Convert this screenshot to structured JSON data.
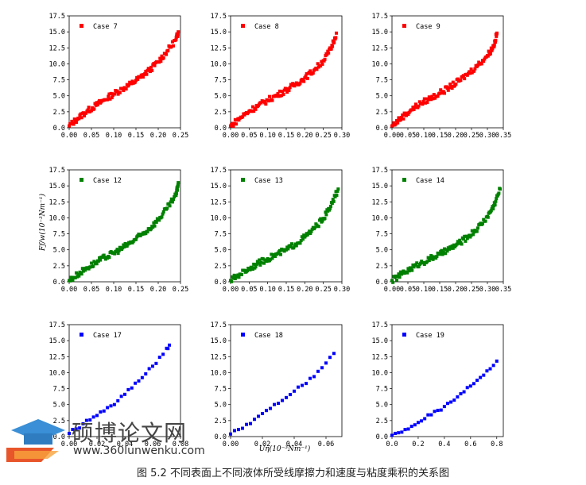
{
  "caption": "图 5.2 不同表面上不同液体所受线摩擦力和速度与粘度乘积的关系图",
  "watermark": {
    "name": "硕博论文网",
    "url": "www.360lunwenku.com"
  },
  "shared_ylabel": "Fƒ/w(10⁻³Nm⁻¹)",
  "shared_xlabel": "Uη(10⁻³Nm⁻¹)",
  "colors": {
    "red": "#ff0000",
    "green": "#008000",
    "blue": "#0000ff"
  },
  "chart_data": [
    {
      "type": "scatter",
      "legend": "Case 7",
      "color": "#ff0000",
      "xlim": [
        0,
        0.25
      ],
      "ylim": [
        0,
        17.5
      ],
      "xticks": [
        "0.00",
        "0.05",
        "0.10",
        "0.15",
        "0.20",
        "0.25"
      ],
      "yticks": [
        "0.0",
        "2.5",
        "5.0",
        "7.5",
        "10.0",
        "12.5",
        "15.0",
        "17.5"
      ],
      "x": [
        0.0,
        0.02,
        0.04,
        0.06,
        0.08,
        0.1,
        0.12,
        0.14,
        0.16,
        0.18,
        0.2,
        0.22,
        0.24,
        0.245
      ],
      "y": [
        0.3,
        1.5,
        2.6,
        3.5,
        4.4,
        5.3,
        6.1,
        6.9,
        7.9,
        9.0,
        10.3,
        12.0,
        13.8,
        15.0
      ]
    },
    {
      "type": "scatter",
      "legend": "Case 8",
      "color": "#ff0000",
      "xlim": [
        0,
        0.3
      ],
      "ylim": [
        0,
        17.5
      ],
      "xticks": [
        "0.00",
        "0.05",
        "0.10",
        "0.15",
        "0.20",
        "0.25",
        "0.30"
      ],
      "yticks": [
        "0.0",
        "2.5",
        "5.0",
        "7.5",
        "10.0",
        "12.5",
        "15.0",
        "17.5"
      ],
      "x": [
        0.0,
        0.025,
        0.05,
        0.075,
        0.1,
        0.125,
        0.15,
        0.175,
        0.2,
        0.225,
        0.25,
        0.27,
        0.285
      ],
      "y": [
        0.3,
        1.5,
        2.6,
        3.5,
        4.3,
        5.1,
        5.9,
        6.8,
        7.8,
        9.0,
        10.5,
        12.3,
        14.8
      ]
    },
    {
      "type": "scatter",
      "legend": "Case 9",
      "color": "#ff0000",
      "xlim": [
        0,
        0.35
      ],
      "ylim": [
        0,
        17.5
      ],
      "xticks": [
        "0.00",
        "0.05",
        "0.10",
        "0.15",
        "0.20",
        "0.25",
        "0.30",
        "0.35"
      ],
      "yticks": [
        "0.0",
        "2.5",
        "5.0",
        "7.5",
        "10.0",
        "12.5",
        "15.0",
        "17.5"
      ],
      "x": [
        0.0,
        0.03,
        0.06,
        0.09,
        0.12,
        0.15,
        0.18,
        0.21,
        0.24,
        0.27,
        0.3,
        0.32,
        0.33
      ],
      "y": [
        0.3,
        1.6,
        2.8,
        3.8,
        4.6,
        5.4,
        6.3,
        7.3,
        8.5,
        9.8,
        11.3,
        12.8,
        14.8
      ]
    },
    {
      "type": "scatter",
      "legend": "Case 12",
      "color": "#008000",
      "xlim": [
        0,
        0.25
      ],
      "ylim": [
        0,
        17.5
      ],
      "xticks": [
        "0.00",
        "0.05",
        "0.10",
        "0.15",
        "0.20",
        "0.25"
      ],
      "yticks": [
        "0.0",
        "2.5",
        "5.0",
        "7.5",
        "10.0",
        "12.5",
        "15.0",
        "17.5"
      ],
      "x": [
        0.0,
        0.02,
        0.04,
        0.06,
        0.08,
        0.1,
        0.12,
        0.14,
        0.16,
        0.18,
        0.2,
        0.22,
        0.24,
        0.245
      ],
      "y": [
        0.2,
        1.2,
        2.2,
        3.0,
        3.8,
        4.5,
        5.3,
        6.2,
        7.2,
        8.3,
        9.7,
        11.5,
        13.5,
        15.5
      ]
    },
    {
      "type": "scatter",
      "legend": "Case 13",
      "color": "#008000",
      "xlim": [
        0,
        0.3
      ],
      "ylim": [
        0,
        17.5
      ],
      "xticks": [
        "0.00",
        "0.05",
        "0.10",
        "0.15",
        "0.20",
        "0.25",
        "0.30"
      ],
      "yticks": [
        "0.0",
        "2.5",
        "5.0",
        "7.5",
        "10.0",
        "12.5",
        "15.0",
        "17.5"
      ],
      "x": [
        0.0,
        0.025,
        0.05,
        0.075,
        0.1,
        0.125,
        0.15,
        0.175,
        0.2,
        0.225,
        0.25,
        0.27,
        0.29
      ],
      "y": [
        0.2,
        1.2,
        2.1,
        2.9,
        3.6,
        4.3,
        5.0,
        5.9,
        7.0,
        8.3,
        9.9,
        11.8,
        14.5
      ]
    },
    {
      "type": "scatter",
      "legend": "Case 14",
      "color": "#008000",
      "xlim": [
        0,
        0.35
      ],
      "ylim": [
        0,
        17.5
      ],
      "xticks": [
        "0.00",
        "0.05",
        "0.10",
        "0.15",
        "0.20",
        "0.25",
        "0.30",
        "0.35"
      ],
      "yticks": [
        "0.0",
        "2.5",
        "5.0",
        "7.5",
        "10.0",
        "12.5",
        "15.0",
        "17.5"
      ],
      "x": [
        0.0,
        0.03,
        0.06,
        0.09,
        0.12,
        0.15,
        0.18,
        0.21,
        0.24,
        0.27,
        0.3,
        0.32,
        0.34
      ],
      "y": [
        0.2,
        1.2,
        2.1,
        2.9,
        3.6,
        4.3,
        5.1,
        6.0,
        7.1,
        8.4,
        10.2,
        11.9,
        14.5
      ]
    },
    {
      "type": "scatter",
      "legend": "Case 17",
      "color": "#0000ff",
      "xlim": [
        0,
        0.08
      ],
      "ylim": [
        0,
        17.5
      ],
      "xticks": [
        "0.00",
        "0.02",
        "0.04",
        "0.06",
        "0.08"
      ],
      "yticks": [
        "0.0",
        "2.5",
        "5.0",
        "7.5",
        "10.0",
        "12.5",
        "15.0",
        "17.5"
      ],
      "x": [
        0.0,
        0.005,
        0.01,
        0.015,
        0.02,
        0.025,
        0.03,
        0.035,
        0.04,
        0.045,
        0.05,
        0.055,
        0.06,
        0.065,
        0.07,
        0.072
      ],
      "y": [
        0.5,
        1.2,
        2.0,
        2.6,
        3.3,
        4.0,
        4.8,
        5.6,
        6.6,
        7.6,
        8.7,
        9.8,
        11.0,
        12.4,
        13.8,
        14.3
      ]
    },
    {
      "type": "scatter",
      "legend": "Case 18",
      "color": "#0000ff",
      "xlim": [
        0,
        0.07
      ],
      "ylim": [
        0,
        17.5
      ],
      "xticks": [
        "0.00",
        "0.02",
        "0.04",
        "0.06"
      ],
      "yticks": [
        "0.0",
        "2.5",
        "5.0",
        "7.5",
        "10.0",
        "12.5",
        "15.0",
        "17.5"
      ],
      "x": [
        0.0,
        0.005,
        0.01,
        0.015,
        0.02,
        0.025,
        0.03,
        0.035,
        0.04,
        0.045,
        0.05,
        0.055,
        0.06,
        0.065
      ],
      "y": [
        0.4,
        1.1,
        1.9,
        2.7,
        3.6,
        4.4,
        5.2,
        6.1,
        7.1,
        8.0,
        9.1,
        10.2,
        11.5,
        13.0
      ]
    },
    {
      "type": "scatter",
      "legend": "Case 19",
      "color": "#0000ff",
      "xlim": [
        0,
        0.85
      ],
      "ylim": [
        0,
        17.5
      ],
      "xticks": [
        "0.0",
        "0.2",
        "0.4",
        "0.6",
        "0.8"
      ],
      "yticks": [
        "0.0",
        "2.5",
        "5.0",
        "7.5",
        "10.0",
        "12.5",
        "15.0",
        "17.5"
      ],
      "x": [
        0.0,
        0.05,
        0.1,
        0.15,
        0.2,
        0.25,
        0.3,
        0.35,
        0.4,
        0.45,
        0.5,
        0.55,
        0.6,
        0.65,
        0.7,
        0.75,
        0.8
      ],
      "y": [
        0.2,
        0.6,
        1.1,
        1.6,
        2.2,
        2.8,
        3.4,
        4.1,
        4.7,
        5.4,
        6.2,
        7.0,
        7.9,
        8.8,
        9.6,
        10.6,
        11.8
      ]
    }
  ]
}
